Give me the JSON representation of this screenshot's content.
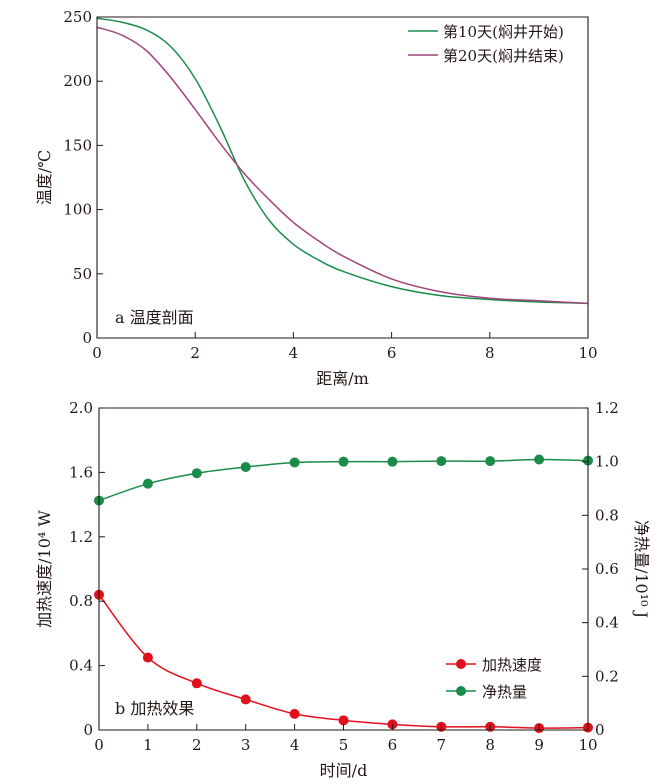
{
  "chart_data": [
    {
      "type": "line",
      "panel_label": "a 温度剖面",
      "xlabel": "距离/m",
      "ylabel": "温度/℃",
      "xlim": [
        0,
        10
      ],
      "ylim": [
        0,
        250
      ],
      "xticks": [
        "0",
        "2",
        "4",
        "6",
        "8",
        "10"
      ],
      "yticks": [
        "0",
        "50",
        "100",
        "150",
        "200",
        "250"
      ],
      "grid": false,
      "legend_position": "top-right",
      "series": [
        {
          "name": "第10天(焖井开始)",
          "color": "#1a8c4a",
          "x": [
            0,
            0.5,
            1,
            1.5,
            2,
            2.5,
            3,
            3.5,
            4,
            4.5,
            5,
            6,
            7,
            8,
            9,
            10
          ],
          "y": [
            249,
            246,
            240,
            227,
            202,
            165,
            123,
            92,
            73,
            61,
            52,
            40,
            33,
            30,
            28,
            27
          ]
        },
        {
          "name": "第20天(焖井结束)",
          "color": "#a0457c",
          "x": [
            0,
            0.5,
            1,
            1.5,
            2,
            2.5,
            3,
            3.5,
            4,
            4.5,
            5,
            6,
            7,
            8,
            9,
            10
          ],
          "y": [
            242,
            236,
            224,
            203,
            178,
            152,
            128,
            108,
            90,
            76,
            64,
            46,
            36,
            31,
            29,
            27
          ]
        }
      ]
    },
    {
      "type": "line",
      "panel_label": "b 加热效果",
      "xlabel": "时间/d",
      "ylabel_left": "加热速度/10⁴ W",
      "ylabel_right": "净热量/10¹⁰ J",
      "xlim": [
        0,
        10
      ],
      "ylim_left": [
        0,
        2.0
      ],
      "ylim_right": [
        0,
        1.2
      ],
      "xticks": [
        "0",
        "1",
        "2",
        "3",
        "4",
        "5",
        "6",
        "7",
        "8",
        "9",
        "10"
      ],
      "yticks_left": [
        "0",
        "0.4",
        "0.8",
        "1.2",
        "1.6",
        "2.0"
      ],
      "yticks_right": [
        "0",
        "0.2",
        "0.4",
        "0.6",
        "0.8",
        "1.0",
        "1.2"
      ],
      "grid": false,
      "legend_position": "bottom-right",
      "series": [
        {
          "name": "加热速度",
          "axis": "left",
          "color": "#e0101c",
          "x": [
            0,
            1,
            2,
            3,
            4,
            5,
            6,
            7,
            8,
            9,
            10
          ],
          "y": [
            0.84,
            0.45,
            0.29,
            0.19,
            0.1,
            0.06,
            0.035,
            0.02,
            0.02,
            0.012,
            0.015
          ]
        },
        {
          "name": "净热量",
          "axis": "right",
          "color": "#1a8c4a",
          "x": [
            0,
            1,
            2,
            3,
            4,
            5,
            6,
            7,
            8,
            9,
            10
          ],
          "y": [
            0.855,
            0.918,
            0.957,
            0.98,
            0.997,
            1.0,
            1.0,
            1.002,
            1.002,
            1.008,
            1.004
          ]
        }
      ]
    }
  ]
}
